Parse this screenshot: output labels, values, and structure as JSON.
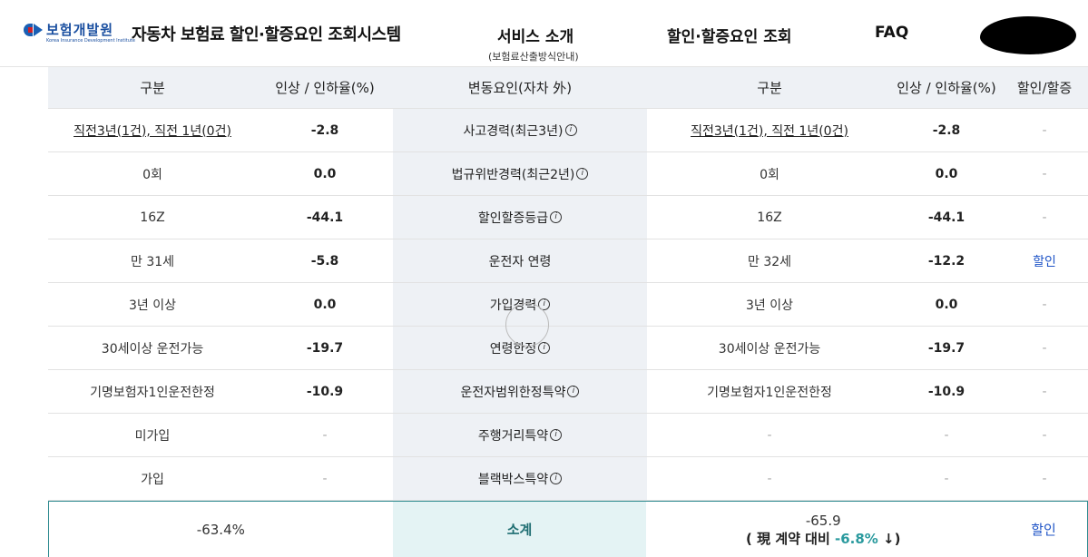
{
  "header": {
    "logo_kr": "보험개발원",
    "logo_en": "Korea Insurance Development Institute",
    "site_title": "자동차 보험료 할인·할증요인 조회시스템",
    "nav": {
      "service": "서비스 소개",
      "service_sub": "(보험료산출방식안내)",
      "discount": "할인·할증요인 조회",
      "faq": "FAQ"
    }
  },
  "table": {
    "headers": [
      "구분",
      "인상 / 인하율(%)",
      "변동요인(자차 外)",
      "구분",
      "인상 / 인하율(%)",
      "할인/할증"
    ],
    "rows": [
      {
        "left_label": "직전3년(1건), 직전 1년(0건)",
        "left_rate": "-2.8",
        "factor": "사고경력(최근3년)",
        "info": "i",
        "right_label": "직전3년(1건), 직전 1년(0건)",
        "right_rate": "-2.8",
        "result": "-"
      },
      {
        "left_label": "0회",
        "left_rate": "0.0",
        "factor": "법규위반경력(최근2년)",
        "info": "i",
        "right_label": "0회",
        "right_rate": "0.0",
        "result": "-"
      },
      {
        "left_label": "16Z",
        "left_rate": "-44.1",
        "factor": "할인할증등급",
        "info": "i",
        "right_label": "16Z",
        "right_rate": "-44.1",
        "result": "-"
      },
      {
        "left_label": "만 31세",
        "left_rate": "-5.8",
        "factor": "운전자 연령",
        "info": "",
        "right_label": "만 32세",
        "right_rate": "-12.2",
        "result": "할인"
      },
      {
        "left_label": "3년 이상",
        "left_rate": "0.0",
        "factor": "가입경력",
        "info": "i",
        "right_label": "3년 이상",
        "right_rate": "0.0",
        "result": "-"
      },
      {
        "left_label": "30세이상 운전가능",
        "left_rate": "-19.7",
        "factor": "연령한정",
        "info": "i",
        "right_label": "30세이상 운전가능",
        "right_rate": "-19.7",
        "result": "-"
      },
      {
        "left_label": "기명보험자1인운전한정",
        "left_rate": "-10.9",
        "factor": "운전자범위한정특약",
        "info": "i",
        "right_label": "기명보험자1인운전한정",
        "right_rate": "-10.9",
        "result": "-"
      },
      {
        "left_label": "미가입",
        "left_rate": "-",
        "factor": "주행거리특약",
        "info": "i",
        "right_label": "-",
        "right_rate": "-",
        "result": "-"
      },
      {
        "left_label": "가입",
        "left_rate": "-",
        "factor": "블랙박스특약",
        "info": "i",
        "right_label": "-",
        "right_rate": "-",
        "result": "-"
      }
    ],
    "total": {
      "left_value": "-63.4%",
      "label": "소계",
      "right_value": "-65.9",
      "compare_prefix": "( 現 계약 대비 ",
      "compare_value": "-6.8%",
      "compare_suffix": " ↓)",
      "result": "할인"
    }
  }
}
